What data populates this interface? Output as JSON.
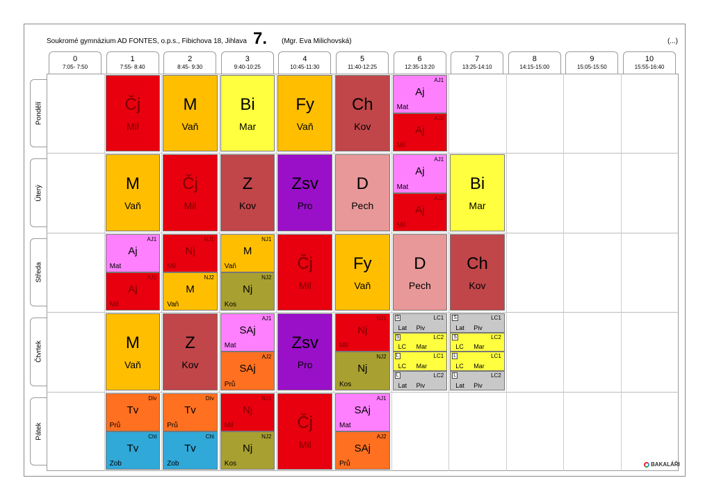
{
  "header": {
    "school": "Soukromé gymnázium AD FONTES, o.p.s., Fibichova 18, Jihlava",
    "class": "7.",
    "teacher": "(Mgr. Eva Milichovská)",
    "more": "(...)"
  },
  "periods": [
    {
      "num": "0",
      "time": "7:05- 7:50"
    },
    {
      "num": "1",
      "time": "7:55- 8:40"
    },
    {
      "num": "2",
      "time": "8:45- 9:30"
    },
    {
      "num": "3",
      "time": "9:40-10:25"
    },
    {
      "num": "4",
      "time": "10:45-11:30"
    },
    {
      "num": "5",
      "time": "11:40-12:25"
    },
    {
      "num": "6",
      "time": "12:35-13:20"
    },
    {
      "num": "7",
      "time": "13:25-14:10"
    },
    {
      "num": "8",
      "time": "14:15-15:00"
    },
    {
      "num": "9",
      "time": "15:05-15:50"
    },
    {
      "num": "10",
      "time": "15:55-16:40"
    }
  ],
  "days": [
    "Pondělí",
    "Úterý",
    "Středa",
    "Čtvrtek",
    "Pátek"
  ],
  "colors": {
    "cj": "#e8000f",
    "m": "#ffbf00",
    "bi": "#ffff40",
    "fy": "#ffbf00",
    "ch": "#c0464a",
    "aj": "#ff80ff",
    "z": "#c0464a",
    "zsv": "#9a10c8",
    "d": "#e89898",
    "nj": "#a8a030",
    "tv_div": "#ff7020",
    "tv_chl": "#30a8d8",
    "sajb": "#ff7020",
    "lat": "#c8c8c8",
    "lc": "#ffff40"
  },
  "lessons": [
    {
      "day": 0,
      "period": 1,
      "type": "full",
      "subject": "Čj",
      "teacher": "Mil",
      "color": "#e8000f",
      "dark": true
    },
    {
      "day": 0,
      "period": 2,
      "type": "full",
      "subject": "M",
      "teacher": "Vaň",
      "color": "#ffbf00"
    },
    {
      "day": 0,
      "period": 3,
      "type": "full",
      "subject": "Bi",
      "teacher": "Mar",
      "color": "#ffff40"
    },
    {
      "day": 0,
      "period": 4,
      "type": "full",
      "subject": "Fy",
      "teacher": "Vaň",
      "color": "#ffbf00"
    },
    {
      "day": 0,
      "period": 5,
      "type": "full",
      "subject": "Ch",
      "teacher": "Kov",
      "color": "#c0464a"
    },
    {
      "day": 0,
      "period": 6,
      "type": "half",
      "pos": 0,
      "group": "AJ1",
      "subject": "Aj",
      "teacher": "Mat",
      "color": "#ff80ff"
    },
    {
      "day": 0,
      "period": 6,
      "type": "half",
      "pos": 1,
      "group": "AJ2",
      "subject": "Aj",
      "teacher": "Mil",
      "color": "#e8000f",
      "dark": true
    },
    {
      "day": 1,
      "period": 1,
      "type": "full",
      "subject": "M",
      "teacher": "Vaň",
      "color": "#ffbf00"
    },
    {
      "day": 1,
      "period": 2,
      "type": "full",
      "subject": "Čj",
      "teacher": "Mil",
      "color": "#e8000f",
      "dark": true
    },
    {
      "day": 1,
      "period": 3,
      "type": "full",
      "subject": "Z",
      "teacher": "Kov",
      "color": "#c0464a"
    },
    {
      "day": 1,
      "period": 4,
      "type": "full",
      "subject": "Zsv",
      "teacher": "Pro",
      "color": "#9a10c8"
    },
    {
      "day": 1,
      "period": 5,
      "type": "full",
      "subject": "D",
      "teacher": "Pech",
      "color": "#e89898"
    },
    {
      "day": 1,
      "period": 6,
      "type": "half",
      "pos": 0,
      "group": "AJ1",
      "subject": "Aj",
      "teacher": "Mat",
      "color": "#ff80ff"
    },
    {
      "day": 1,
      "period": 6,
      "type": "half",
      "pos": 1,
      "group": "AJ2",
      "subject": "Aj",
      "teacher": "Mil",
      "color": "#e8000f",
      "dark": true
    },
    {
      "day": 1,
      "period": 7,
      "type": "full",
      "subject": "Bi",
      "teacher": "Mar",
      "color": "#ffff40"
    },
    {
      "day": 2,
      "period": 1,
      "type": "half",
      "pos": 0,
      "group": "AJ1",
      "subject": "Aj",
      "teacher": "Mat",
      "color": "#ff80ff"
    },
    {
      "day": 2,
      "period": 1,
      "type": "half",
      "pos": 1,
      "group": "AJ2",
      "subject": "Aj",
      "teacher": "Mil",
      "color": "#e8000f",
      "dark": true
    },
    {
      "day": 2,
      "period": 2,
      "type": "half",
      "pos": 0,
      "group": "NJ1",
      "subject": "Nj",
      "teacher": "Mil",
      "color": "#e8000f",
      "dark": true
    },
    {
      "day": 2,
      "period": 2,
      "type": "half",
      "pos": 1,
      "group": "NJ2",
      "subject": "M",
      "teacher": "Vaň",
      "color": "#ffbf00"
    },
    {
      "day": 2,
      "period": 3,
      "type": "half",
      "pos": 0,
      "group": "NJ1",
      "subject": "M",
      "teacher": "Vaň",
      "color": "#ffbf00"
    },
    {
      "day": 2,
      "period": 3,
      "type": "half",
      "pos": 1,
      "group": "NJ2",
      "subject": "Nj",
      "teacher": "Kos",
      "color": "#a8a030"
    },
    {
      "day": 2,
      "period": 4,
      "type": "full",
      "subject": "Čj",
      "teacher": "Mil",
      "color": "#e8000f",
      "dark": true
    },
    {
      "day": 2,
      "period": 5,
      "type": "full",
      "subject": "Fy",
      "teacher": "Vaň",
      "color": "#ffbf00"
    },
    {
      "day": 2,
      "period": 6,
      "type": "full",
      "subject": "D",
      "teacher": "Pech",
      "color": "#e89898"
    },
    {
      "day": 2,
      "period": 7,
      "type": "full",
      "subject": "Ch",
      "teacher": "Kov",
      "color": "#c0464a"
    },
    {
      "day": 3,
      "period": 1,
      "type": "full",
      "subject": "M",
      "teacher": "Vaň",
      "color": "#ffbf00"
    },
    {
      "day": 3,
      "period": 2,
      "type": "full",
      "subject": "Z",
      "teacher": "Kov",
      "color": "#c0464a"
    },
    {
      "day": 3,
      "period": 3,
      "type": "half",
      "pos": 0,
      "group": "AJ1",
      "subject": "SAj",
      "teacher": "Mat",
      "color": "#ff80ff"
    },
    {
      "day": 3,
      "period": 3,
      "type": "half",
      "pos": 1,
      "group": "AJ2",
      "subject": "SAj",
      "teacher": "Prů",
      "color": "#ff7020"
    },
    {
      "day": 3,
      "period": 4,
      "type": "full",
      "subject": "Zsv",
      "teacher": "Pro",
      "color": "#9a10c8"
    },
    {
      "day": 3,
      "period": 5,
      "type": "half",
      "pos": 0,
      "group": "NJ1",
      "subject": "Nj",
      "teacher": "Mil",
      "color": "#e8000f",
      "dark": true
    },
    {
      "day": 3,
      "period": 5,
      "type": "half",
      "pos": 1,
      "group": "NJ2",
      "subject": "Nj",
      "teacher": "Kos",
      "color": "#a8a030"
    },
    {
      "day": 3,
      "period": 6,
      "type": "quarter",
      "pos": 0,
      "key": "S",
      "group": "LC1",
      "subject": "Lat",
      "teacher": "Piv",
      "color": "#c8c8c8"
    },
    {
      "day": 3,
      "period": 6,
      "type": "quarter",
      "pos": 1,
      "key": "S",
      "group": "LC2",
      "subject": "LC",
      "teacher": "Mar",
      "color": "#ffff40"
    },
    {
      "day": 3,
      "period": 6,
      "type": "quarter",
      "pos": 2,
      "key": "L",
      "group": "LC1",
      "subject": "LC",
      "teacher": "Mar",
      "color": "#ffff40"
    },
    {
      "day": 3,
      "period": 6,
      "type": "quarter",
      "pos": 3,
      "key": "L",
      "group": "LC2",
      "subject": "Lat",
      "teacher": "Piv",
      "color": "#c8c8c8"
    },
    {
      "day": 3,
      "period": 7,
      "type": "quarter",
      "pos": 0,
      "key": "S",
      "group": "LC1",
      "subject": "Lat",
      "teacher": "Piv",
      "color": "#c8c8c8"
    },
    {
      "day": 3,
      "period": 7,
      "type": "quarter",
      "pos": 1,
      "key": "S",
      "group": "LC2",
      "subject": "LC",
      "teacher": "Mar",
      "color": "#ffff40"
    },
    {
      "day": 3,
      "period": 7,
      "type": "quarter",
      "pos": 2,
      "key": "L",
      "group": "LC1",
      "subject": "LC",
      "teacher": "Mar",
      "color": "#ffff40"
    },
    {
      "day": 3,
      "period": 7,
      "type": "quarter",
      "pos": 3,
      "key": "L",
      "group": "LC2",
      "subject": "Lat",
      "teacher": "Piv",
      "color": "#c8c8c8"
    },
    {
      "day": 4,
      "period": 1,
      "type": "half",
      "pos": 0,
      "group": "Dív",
      "subject": "Tv",
      "teacher": "Prů",
      "color": "#ff7020"
    },
    {
      "day": 4,
      "period": 1,
      "type": "half",
      "pos": 1,
      "group": "Chl",
      "subject": "Tv",
      "teacher": "Zob",
      "color": "#30a8d8"
    },
    {
      "day": 4,
      "period": 2,
      "type": "half",
      "pos": 0,
      "group": "Dív",
      "subject": "Tv",
      "teacher": "Prů",
      "color": "#ff7020"
    },
    {
      "day": 4,
      "period": 2,
      "type": "half",
      "pos": 1,
      "group": "Chl",
      "subject": "Tv",
      "teacher": "Zob",
      "color": "#30a8d8"
    },
    {
      "day": 4,
      "period": 3,
      "type": "half",
      "pos": 0,
      "group": "NJ1",
      "subject": "Nj",
      "teacher": "Mil",
      "color": "#e8000f",
      "dark": true
    },
    {
      "day": 4,
      "period": 3,
      "type": "half",
      "pos": 1,
      "group": "NJ2",
      "subject": "Nj",
      "teacher": "Kos",
      "color": "#a8a030"
    },
    {
      "day": 4,
      "period": 4,
      "type": "full",
      "subject": "Čj",
      "teacher": "Mil",
      "color": "#e8000f",
      "dark": true
    },
    {
      "day": 4,
      "period": 5,
      "type": "half",
      "pos": 0,
      "group": "AJ1",
      "subject": "SAj",
      "teacher": "Mat",
      "color": "#ff80ff"
    },
    {
      "day": 4,
      "period": 5,
      "type": "half",
      "pos": 1,
      "group": "AJ2",
      "subject": "SAj",
      "teacher": "Prů",
      "color": "#ff7020"
    }
  ],
  "logo": "BAKALÁŘI"
}
